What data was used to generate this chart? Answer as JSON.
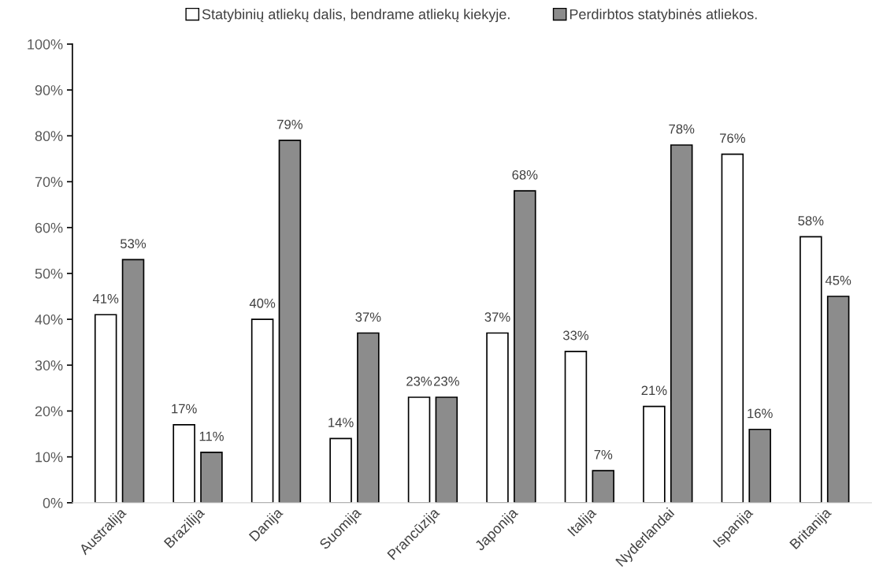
{
  "chart_data": {
    "type": "bar",
    "categories": [
      "Australija",
      "Brazilija",
      "Danija",
      "Suomija",
      "Prancūzija",
      "Japonija",
      "Italija",
      "Nyderlandai",
      "Ispanija",
      "Britanija"
    ],
    "series": [
      {
        "name": "Statybinių atliekų dalis, bendrame atliekų kiekyje.",
        "color": "#ffffff",
        "values": [
          41,
          17,
          40,
          14,
          23,
          37,
          33,
          21,
          76,
          58
        ],
        "value_labels": [
          "41%",
          "17%",
          "40%",
          "14%",
          "23%",
          "37%",
          "33%",
          "21%",
          "76%",
          "58%"
        ]
      },
      {
        "name": "Perdirbtos statybinės atliekos.",
        "color": "#8c8c8c",
        "values": [
          53,
          11,
          79,
          37,
          23,
          68,
          7,
          78,
          16,
          45
        ],
        "value_labels": [
          "53%",
          "11%",
          "79%",
          "37%",
          "23%",
          "68%",
          "7%",
          "78%",
          "16%",
          "45%"
        ]
      }
    ],
    "ylim": [
      0,
      100
    ],
    "yticks": [
      {
        "value": 0,
        "label": "0%"
      },
      {
        "value": 10,
        "label": "10%"
      },
      {
        "value": 20,
        "label": "20%"
      },
      {
        "value": 30,
        "label": "30%"
      },
      {
        "value": 40,
        "label": "40%"
      },
      {
        "value": 50,
        "label": "50%"
      },
      {
        "value": 60,
        "label": "60%"
      },
      {
        "value": 70,
        "label": "70%"
      },
      {
        "value": 80,
        "label": "80%"
      },
      {
        "value": 90,
        "label": "90%"
      },
      {
        "value": 100,
        "label": "100%"
      }
    ],
    "grid": false,
    "legend": "top"
  }
}
